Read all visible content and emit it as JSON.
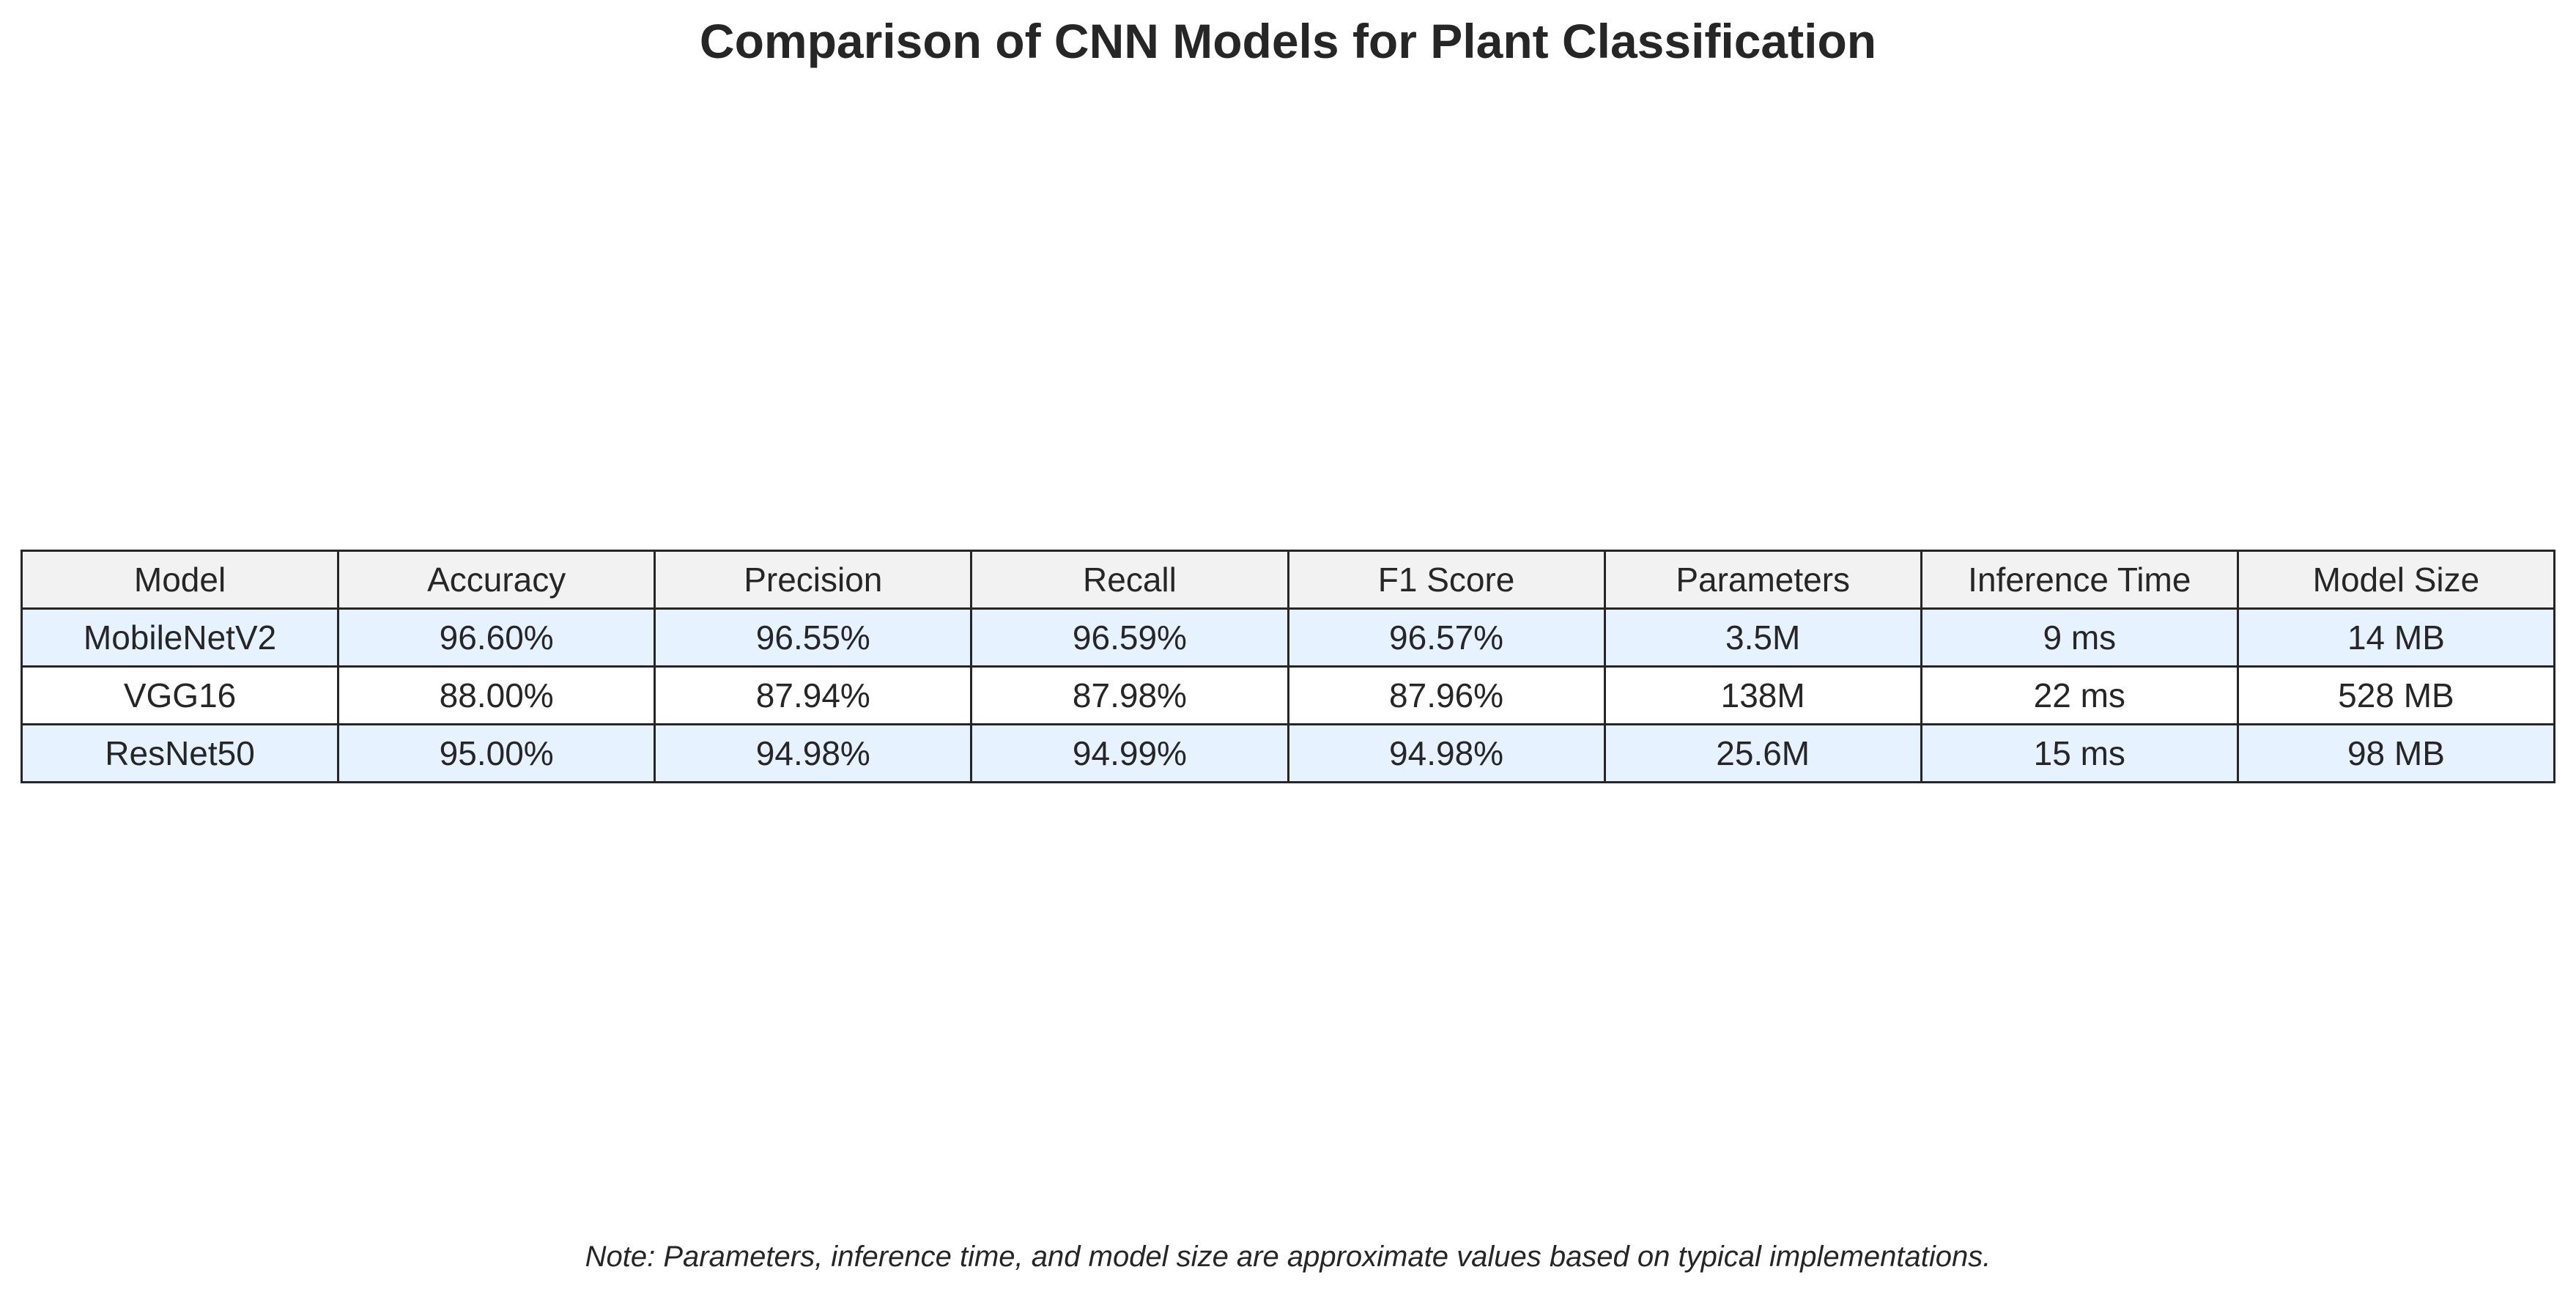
{
  "chart_data": {
    "type": "table",
    "title": "Comparison of CNN Models for Plant Classification",
    "columns": [
      "Model",
      "Accuracy",
      "Precision",
      "Recall",
      "F1 Score",
      "Parameters",
      "Inference Time",
      "Model Size"
    ],
    "rows": [
      [
        "MobileNetV2",
        "96.60%",
        "96.55%",
        "96.59%",
        "96.57%",
        "3.5M",
        "9 ms",
        "14 MB"
      ],
      [
        "VGG16",
        "88.00%",
        "87.94%",
        "87.98%",
        "87.96%",
        "138M",
        "22 ms",
        "528 MB"
      ],
      [
        "ResNet50",
        "95.00%",
        "94.98%",
        "94.99%",
        "94.98%",
        "25.6M",
        "15 ms",
        "98 MB"
      ]
    ],
    "note": "Note: Parameters, inference time, and model size are approximate values based on typical implementations.",
    "colors": {
      "header_bg": "#f2f2f2",
      "shaded_row_bg": "#e6f2ff",
      "plain_row_bg": "#ffffff",
      "border": "#262626",
      "text": "#262626"
    }
  }
}
